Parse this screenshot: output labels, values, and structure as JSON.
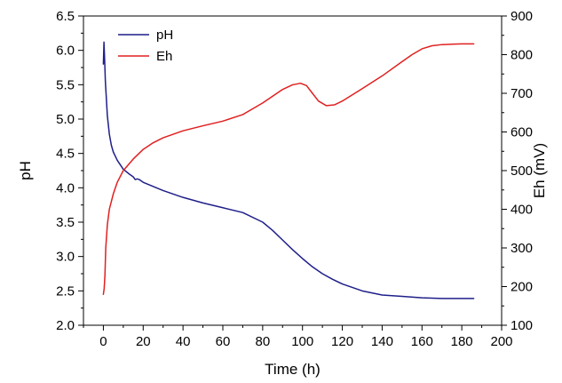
{
  "chart_data": {
    "type": "line",
    "title": "",
    "xlabel": "Time (h)",
    "ylabel": "pH",
    "y2label": "Eh (mV)",
    "xlim": [
      -10,
      200
    ],
    "ylim": [
      2.0,
      6.5
    ],
    "y2lim": [
      100,
      900
    ],
    "xticks": [
      "0",
      "20",
      "40",
      "60",
      "80",
      "100",
      "120",
      "140",
      "160",
      "180",
      "200"
    ],
    "yticks": [
      "2.0",
      "2.5",
      "3.0",
      "3.5",
      "4.0",
      "4.5",
      "5.0",
      "5.5",
      "6.0",
      "6.5"
    ],
    "y2ticks": [
      "100",
      "200",
      "300",
      "400",
      "500",
      "600",
      "700",
      "800",
      "900"
    ],
    "grid": false,
    "legend_position": "top-left",
    "series": [
      {
        "name": "pH",
        "axis": "left",
        "color": "#1f1f8a",
        "points": [
          [
            0,
            5.8
          ],
          [
            0.3,
            6.12
          ],
          [
            0.6,
            5.9
          ],
          [
            1,
            5.55
          ],
          [
            2,
            5.05
          ],
          [
            3,
            4.78
          ],
          [
            4,
            4.62
          ],
          [
            5,
            4.52
          ],
          [
            7,
            4.4
          ],
          [
            10,
            4.27
          ],
          [
            13,
            4.2
          ],
          [
            15,
            4.16
          ],
          [
            16,
            4.12
          ],
          [
            17,
            4.13
          ],
          [
            18,
            4.12
          ],
          [
            20,
            4.08
          ],
          [
            30,
            3.96
          ],
          [
            40,
            3.86
          ],
          [
            50,
            3.78
          ],
          [
            60,
            3.71
          ],
          [
            70,
            3.64
          ],
          [
            80,
            3.5
          ],
          [
            85,
            3.38
          ],
          [
            90,
            3.24
          ],
          [
            95,
            3.1
          ],
          [
            100,
            2.97
          ],
          [
            105,
            2.85
          ],
          [
            110,
            2.75
          ],
          [
            115,
            2.67
          ],
          [
            120,
            2.6
          ],
          [
            130,
            2.5
          ],
          [
            140,
            2.44
          ],
          [
            150,
            2.42
          ],
          [
            160,
            2.4
          ],
          [
            170,
            2.39
          ],
          [
            180,
            2.39
          ],
          [
            186,
            2.39
          ]
        ]
      },
      {
        "name": "Eh",
        "axis": "right",
        "color": "#e02020",
        "points": [
          [
            0,
            180
          ],
          [
            0.4,
            195
          ],
          [
            0.8,
            230
          ],
          [
            1.2,
            300
          ],
          [
            2,
            360
          ],
          [
            3,
            400
          ],
          [
            5,
            440
          ],
          [
            7,
            470
          ],
          [
            10,
            500
          ],
          [
            15,
            530
          ],
          [
            20,
            555
          ],
          [
            25,
            572
          ],
          [
            30,
            585
          ],
          [
            40,
            603
          ],
          [
            50,
            616
          ],
          [
            60,
            628
          ],
          [
            70,
            645
          ],
          [
            80,
            675
          ],
          [
            90,
            710
          ],
          [
            95,
            722
          ],
          [
            99,
            726
          ],
          [
            102,
            720
          ],
          [
            105,
            700
          ],
          [
            108,
            680
          ],
          [
            112,
            668
          ],
          [
            116,
            670
          ],
          [
            120,
            680
          ],
          [
            130,
            712
          ],
          [
            140,
            745
          ],
          [
            150,
            782
          ],
          [
            155,
            800
          ],
          [
            160,
            815
          ],
          [
            165,
            823
          ],
          [
            170,
            826
          ],
          [
            180,
            828
          ],
          [
            186,
            828
          ]
        ]
      }
    ]
  }
}
